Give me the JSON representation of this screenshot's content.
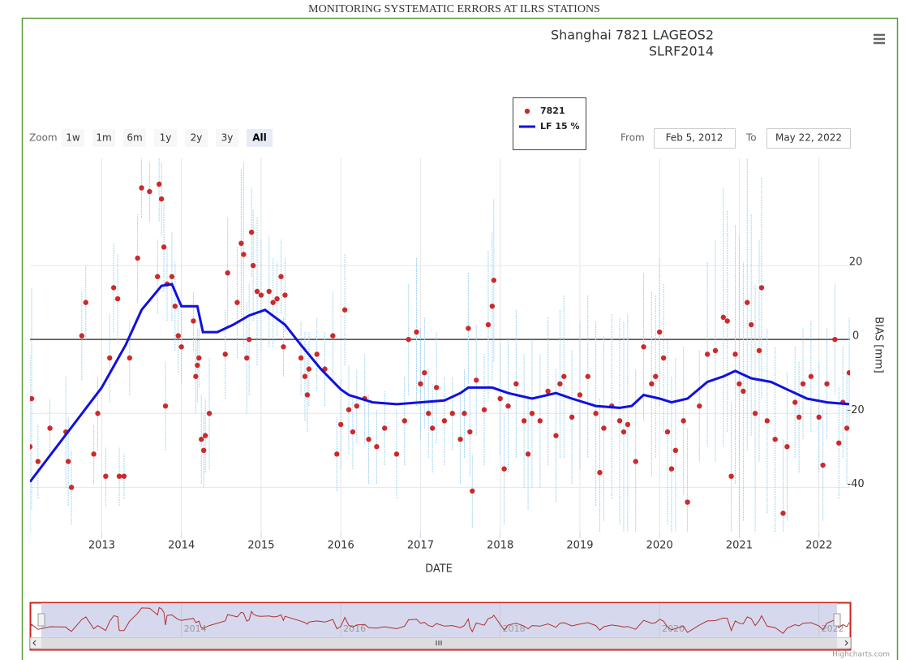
{
  "header": "MONITORING SYSTEMATIC ERRORS AT ILRS STATIONS",
  "ui": {
    "zoom_label": "Zoom",
    "zoom_buttons": [
      "1w",
      "1m",
      "6m",
      "1y",
      "2y",
      "3y",
      "All"
    ],
    "from_label": "From",
    "from_value": "Feb 5, 2012",
    "to_label": "To",
    "to_value": "May 22, 2022",
    "credit": "Highcharts.com"
  },
  "chart_data": {
    "type": "scatter",
    "title": "Shanghai 7821 LAGEOS2",
    "subtitle": "SLRF2014",
    "x_label": "DATE",
    "y_label": "BIAS [mm]",
    "xlim": [
      2012.1,
      2022.39
    ],
    "xticks": [
      2013,
      2014,
      2015,
      2016,
      2017,
      2018,
      2019,
      2020,
      2021,
      2022
    ],
    "ylim": [
      -52,
      49
    ],
    "yticks": [
      -40,
      -20,
      0,
      20
    ],
    "plot_lines": [
      0
    ],
    "grid": true,
    "navigator_ticks": [
      2014,
      2016,
      2018,
      2020,
      2022
    ],
    "series": [
      {
        "name": "7821",
        "type": "scatter",
        "color": "#cc2a2a",
        "error_color": "#9fd3f0",
        "x": [
          2012.1,
          2012.12,
          2012.2,
          2012.35,
          2012.55,
          2012.58,
          2012.62,
          2012.75,
          2012.8,
          2012.9,
          2012.95,
          2013.05,
          2013.1,
          2013.15,
          2013.2,
          2013.22,
          2013.28,
          2013.35,
          2013.45,
          2013.5,
          2013.6,
          2013.7,
          2013.72,
          2013.75,
          2013.78,
          2013.8,
          2013.82,
          2013.88,
          2013.92,
          2013.96,
          2014.0,
          2014.15,
          2014.18,
          2014.2,
          2014.22,
          2014.25,
          2014.28,
          2014.3,
          2014.35,
          2014.55,
          2014.58,
          2014.7,
          2014.75,
          2014.78,
          2014.82,
          2014.85,
          2014.88,
          2014.9,
          2014.95,
          2015.0,
          2015.1,
          2015.15,
          2015.2,
          2015.25,
          2015.28,
          2015.3,
          2015.5,
          2015.55,
          2015.58,
          2015.6,
          2015.7,
          2015.8,
          2015.9,
          2015.95,
          2016.0,
          2016.05,
          2016.1,
          2016.15,
          2016.2,
          2016.3,
          2016.35,
          2016.45,
          2016.55,
          2016.7,
          2016.8,
          2016.85,
          2016.95,
          2017.0,
          2017.05,
          2017.1,
          2017.15,
          2017.2,
          2017.3,
          2017.4,
          2017.5,
          2017.55,
          2017.6,
          2017.62,
          2017.65,
          2017.7,
          2017.8,
          2017.85,
          2017.9,
          2017.92,
          2018.0,
          2018.05,
          2018.1,
          2018.2,
          2018.3,
          2018.35,
          2018.4,
          2018.5,
          2018.6,
          2018.7,
          2018.75,
          2018.8,
          2018.9,
          2019.0,
          2019.1,
          2019.2,
          2019.25,
          2019.3,
          2019.4,
          2019.5,
          2019.55,
          2019.6,
          2019.7,
          2019.8,
          2019.9,
          2019.95,
          2020.0,
          2020.05,
          2020.1,
          2020.15,
          2020.2,
          2020.3,
          2020.35,
          2020.5,
          2020.6,
          2020.7,
          2020.8,
          2020.85,
          2020.9,
          2020.95,
          2021.0,
          2021.05,
          2021.1,
          2021.15,
          2021.2,
          2021.25,
          2021.28,
          2021.35,
          2021.45,
          2021.55,
          2021.6,
          2021.7,
          2021.75,
          2021.8,
          2021.9,
          2022.0,
          2022.05,
          2022.1,
          2022.2,
          2022.25,
          2022.3,
          2022.35,
          2022.38
        ],
        "values": [
          -29,
          -16,
          -33,
          -24,
          -25,
          -33,
          -40,
          1,
          10,
          -31,
          -20,
          -37,
          -5,
          14,
          11,
          -37,
          -37,
          -5,
          22,
          41,
          40,
          17,
          42,
          38,
          25,
          -18,
          15,
          17,
          9,
          1,
          -2,
          5,
          -10,
          -7,
          -5,
          -27,
          -30,
          -26,
          -20,
          -4,
          18,
          10,
          26,
          23,
          -5,
          0,
          29,
          20,
          13,
          12,
          13,
          10,
          11,
          17,
          -2,
          12,
          -5,
          -10,
          -15,
          -8,
          -4,
          -8,
          1,
          -31,
          -23,
          8,
          -19,
          -25,
          -18,
          -16,
          -27,
          -29,
          -24,
          -31,
          -22,
          0,
          2,
          -12,
          -9,
          -20,
          -24,
          -13,
          -22,
          -20,
          -27,
          -20,
          3,
          -25,
          -41,
          -11,
          -19,
          4,
          9,
          16,
          -16,
          -35,
          -18,
          -12,
          -22,
          -31,
          -20,
          -22,
          -14,
          -26,
          -12,
          -10,
          -21,
          -15,
          -10,
          -20,
          -36,
          -24,
          -18,
          -22,
          -25,
          -23,
          -33,
          -2,
          -12,
          -10,
          2,
          -5,
          -25,
          -35,
          -30,
          -22,
          -44,
          -18,
          -4,
          -3,
          6,
          5,
          -37,
          -4,
          -12,
          -14,
          10,
          4,
          -20,
          -3,
          14,
          -22,
          -27,
          -47,
          -29,
          -17,
          -21,
          -12,
          -10,
          -21,
          -34,
          -12,
          0,
          -28,
          -17,
          -24,
          -9
        ],
        "errors": [
          25,
          30,
          10,
          8,
          15,
          12,
          10,
          12,
          10,
          8,
          10,
          8,
          12,
          12,
          12,
          8,
          6,
          10,
          12,
          8,
          8,
          10,
          10,
          10,
          12,
          12,
          10,
          12,
          12,
          10,
          10,
          8,
          10,
          10,
          8,
          12,
          10,
          10,
          15,
          12,
          15,
          15,
          20,
          25,
          15,
          15,
          12,
          15,
          20,
          15,
          15,
          12,
          10,
          10,
          8,
          10,
          10,
          12,
          10,
          10,
          10,
          10,
          12,
          10,
          12,
          15,
          12,
          10,
          10,
          12,
          12,
          10,
          10,
          12,
          12,
          15,
          20,
          15,
          15,
          12,
          12,
          15,
          12,
          10,
          12,
          12,
          15,
          12,
          10,
          15,
          15,
          20,
          20,
          22,
          15,
          15,
          18,
          20,
          18,
          15,
          20,
          18,
          20,
          18,
          20,
          22,
          18,
          20,
          22,
          25,
          20,
          25,
          25,
          28,
          30,
          30,
          25,
          20,
          25,
          22,
          20,
          20,
          25,
          25,
          25,
          20,
          20,
          15,
          25,
          30,
          35,
          30,
          20,
          35,
          40,
          35,
          40,
          30,
          35,
          30,
          30,
          25,
          25,
          20,
          20,
          15,
          15,
          15,
          15,
          15,
          15,
          15,
          15,
          15,
          15,
          15,
          15
        ]
      },
      {
        "name": "LF 15 %",
        "type": "line",
        "color": "#1010e0",
        "x": [
          2012.1,
          2013.0,
          2013.3,
          2013.5,
          2013.75,
          2013.88,
          2014.0,
          2014.2,
          2014.27,
          2014.45,
          2014.65,
          2014.85,
          2015.05,
          2015.3,
          2015.5,
          2015.75,
          2016.0,
          2016.1,
          2016.4,
          2016.7,
          2017.0,
          2017.3,
          2017.5,
          2017.6,
          2017.9,
          2018.1,
          2018.4,
          2018.7,
          2018.9,
          2019.2,
          2019.5,
          2019.65,
          2019.8,
          2020.0,
          2020.15,
          2020.35,
          2020.6,
          2020.8,
          2020.95,
          2021.15,
          2021.4,
          2021.6,
          2021.85,
          2022.1,
          2022.38
        ],
        "values": [
          -38.5,
          -13,
          -1.5,
          8,
          14.5,
          15,
          9,
          9,
          2,
          2,
          4,
          6.5,
          8,
          4,
          -1.5,
          -8,
          -13.5,
          -15,
          -17,
          -17.5,
          -17,
          -16.5,
          -14.5,
          -13,
          -13,
          -14.5,
          -16,
          -14.5,
          -16,
          -18,
          -18.5,
          -18,
          -15,
          -16,
          -17,
          -16,
          -11.5,
          -10,
          -8.5,
          -10.5,
          -11.5,
          -13.5,
          -16,
          -17,
          -17.5
        ]
      }
    ]
  }
}
